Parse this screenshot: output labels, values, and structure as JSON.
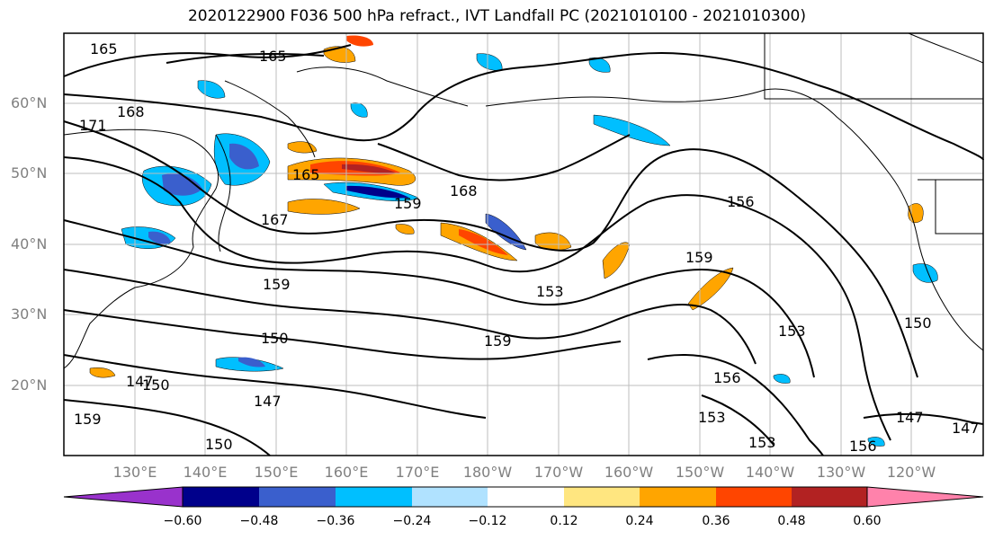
{
  "title": "2020122900 F036 500 hPa refract., IVT Landfall PC (2021010100 - 2021010300)",
  "lat_ticks": [
    "60°N",
    "50°N",
    "40°N",
    "30°N",
    "20°N"
  ],
  "lon_ticks": [
    "130°E",
    "140°E",
    "150°E",
    "160°E",
    "170°E",
    "180°W",
    "170°W",
    "160°W",
    "150°W",
    "140°W",
    "130°W",
    "120°W"
  ],
  "contour_labels": [
    "165",
    "165",
    "168",
    "171",
    "165",
    "167",
    "159",
    "168",
    "156",
    "159",
    "153",
    "159",
    "159",
    "150",
    "147",
    "150",
    "147",
    "153",
    "150",
    "156",
    "147",
    "153",
    "153",
    "156",
    "147",
    "159",
    "150"
  ],
  "colorbar": {
    "labels": [
      "−0.60",
      "−0.48",
      "−0.36",
      "−0.24",
      "−0.12",
      "0.12",
      "0.24",
      "0.36",
      "0.48",
      "0.60"
    ],
    "colors": [
      "#9932cc",
      "#00008b",
      "#3a5fcd",
      "#00bfff",
      "#b0e2ff",
      "#ffffff",
      "#ffe680",
      "#ffa500",
      "#ff4500",
      "#b22222",
      "#ff82ab"
    ]
  }
}
